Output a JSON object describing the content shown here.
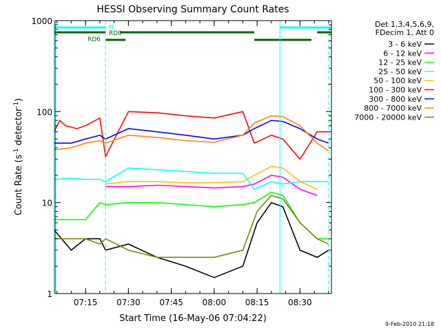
{
  "chart_data": {
    "type": "line",
    "title": "HESSI Observing Summary Count Rates",
    "xlabel": "Start Time (16-May-06 07:04:22)",
    "ylabel_parts": [
      "Count Rate (s",
      "-1",
      " detector",
      "-1",
      ")"
    ],
    "y_scale": "log",
    "ylim": [
      1,
      1000
    ],
    "xlim_minutes": [
      "07:04:22",
      "08:41:00"
    ],
    "y_ticks": [
      {
        "value": 1,
        "label": "1"
      },
      {
        "value": 10,
        "label": "10"
      },
      {
        "value": 100,
        "label": "100"
      },
      {
        "value": 1000,
        "label": "1000"
      }
    ],
    "x_ticks": [
      {
        "t": "07:15",
        "label": "07:15"
      },
      {
        "t": "07:30",
        "label": "07:30"
      },
      {
        "t": "07:45",
        "label": "07:45"
      },
      {
        "t": "08:00",
        "label": "08:00"
      },
      {
        "t": "08:15",
        "label": "08:15"
      },
      {
        "t": "08:30",
        "label": "08:30"
      }
    ],
    "x_tick_step_minutes": 5,
    "legend_header": [
      "Det 1,3,4,5,6,9,",
      "FDecim 1, Att 0"
    ],
    "legend_placement": "outside-right",
    "series": [
      {
        "name": "3 - 6 keV",
        "color": "#000000",
        "times": [
          "07:04",
          "07:10",
          "07:15",
          "07:20",
          "07:22",
          "07:30",
          "07:40",
          "07:50",
          "08:00",
          "08:10",
          "08:15",
          "08:20",
          "08:24",
          "08:30",
          "08:36",
          "08:40"
        ],
        "values": [
          5,
          3,
          4,
          4,
          3,
          3.5,
          2.5,
          2,
          1.5,
          2,
          6,
          10,
          9,
          3,
          2.5,
          3
        ]
      },
      {
        "name": "6 - 12 keV",
        "color": "#ff00ff",
        "times": [
          "07:22",
          "07:30",
          "07:40",
          "07:50",
          "08:00",
          "08:10",
          "08:14",
          "08:20",
          "08:24",
          "08:30",
          "08:36"
        ],
        "values": [
          15,
          15,
          15.5,
          15,
          14.5,
          15,
          16,
          20,
          19,
          14,
          12
        ]
      },
      {
        "name": "12 - 25 keV",
        "color": "#00ff00",
        "times": [
          "07:04",
          "07:10",
          "07:15",
          "07:20",
          "07:22",
          "07:30",
          "07:40",
          "07:50",
          "08:00",
          "08:10",
          "08:14",
          "08:20",
          "08:24",
          "08:30",
          "08:36",
          "08:40"
        ],
        "values": [
          6.5,
          6.5,
          6.5,
          10,
          9.5,
          10,
          10,
          9.5,
          9,
          9.5,
          10,
          13,
          12,
          6,
          4,
          4
        ]
      },
      {
        "name": "25 - 50 keV",
        "color": "#00ffff",
        "times": [
          "07:04",
          "07:10",
          "07:15",
          "07:20",
          "07:22",
          "07:30",
          "07:40",
          "07:50",
          "08:00",
          "08:10",
          "08:14",
          "08:20",
          "08:24",
          "08:30",
          "08:36",
          "08:40"
        ],
        "values": [
          18,
          18.5,
          18,
          18,
          17,
          24,
          23,
          22,
          21,
          21,
          14,
          17,
          16,
          17,
          17,
          17
        ]
      },
      {
        "name": "50 - 100 keV",
        "color": "#ffbf00",
        "times": [
          "07:22",
          "07:30",
          "07:40",
          "07:50",
          "08:00",
          "08:10",
          "08:14",
          "08:20",
          "08:24",
          "08:30",
          "08:36"
        ],
        "values": [
          16,
          17,
          17,
          16.5,
          16.5,
          17,
          20,
          25,
          24,
          17,
          14
        ]
      },
      {
        "name": "100 - 300 keV",
        "color": "#ff0000",
        "times": [
          "07:04",
          "07:06",
          "07:08",
          "07:12",
          "07:15",
          "07:20",
          "07:22",
          "07:30",
          "07:40",
          "07:50",
          "08:00",
          "08:10",
          "08:14",
          "08:20",
          "08:24",
          "08:30",
          "08:36",
          "08:40"
        ],
        "values": [
          60,
          80,
          70,
          65,
          70,
          85,
          32,
          100,
          97,
          90,
          85,
          100,
          45,
          55,
          50,
          30,
          60,
          60
        ]
      },
      {
        "name": "300 - 800 keV",
        "color": "#0000ff",
        "times": [
          "07:04",
          "07:10",
          "07:15",
          "07:20",
          "07:22",
          "07:30",
          "07:40",
          "07:50",
          "08:00",
          "08:10",
          "08:14",
          "08:20",
          "08:24",
          "08:30",
          "08:36",
          "08:40"
        ],
        "values": [
          45,
          45,
          50,
          55,
          50,
          65,
          60,
          55,
          50,
          55,
          65,
          80,
          78,
          65,
          50,
          45
        ]
      },
      {
        "name": "800 - 7000 keV",
        "color": "#ff8000",
        "times": [
          "07:04",
          "07:10",
          "07:15",
          "07:20",
          "07:22",
          "07:30",
          "07:40",
          "07:50",
          "08:00",
          "08:10",
          "08:14",
          "08:20",
          "08:24",
          "08:30",
          "08:36",
          "08:40"
        ],
        "values": [
          38,
          40,
          45,
          48,
          45,
          55,
          52,
          48,
          46,
          55,
          75,
          90,
          88,
          70,
          45,
          37
        ]
      },
      {
        "name": "7000 - 20000 keV",
        "color": "#808000",
        "times": [
          "07:04",
          "07:10",
          "07:15",
          "07:20",
          "07:22",
          "07:30",
          "07:40",
          "07:50",
          "08:00",
          "08:10",
          "08:15",
          "08:20",
          "08:24",
          "08:30",
          "08:36",
          "08:40"
        ],
        "values": [
          4,
          4,
          4,
          3.5,
          4,
          3,
          2.5,
          2.5,
          2.5,
          3,
          8,
          12,
          11,
          6,
          4,
          3.5
        ]
      }
    ],
    "state_bars": [
      {
        "label": "N",
        "color": "#00ffff",
        "segments": [
          [
            "07:04",
            "07:22"
          ],
          [
            "08:23",
            "08:41"
          ]
        ]
      },
      {
        "label": "RD0",
        "color": "#006400",
        "segments": [
          [
            "07:04",
            "07:22"
          ],
          [
            "07:27",
            "08:14"
          ],
          [
            "08:36",
            "08:41"
          ]
        ]
      },
      {
        "label": "RD6",
        "color": "#006400",
        "segments": [
          [
            "07:22",
            "07:29"
          ],
          [
            "08:14",
            "08:34"
          ]
        ]
      }
    ],
    "vertical_lines": [
      {
        "t": "07:04",
        "color": "#00ffff",
        "style": "solid"
      },
      {
        "t": "07:22",
        "color": "#00ffff",
        "style": "dashed"
      },
      {
        "t": "08:23",
        "color": "#00ffff",
        "style": "solid"
      },
      {
        "t": "08:40",
        "color": "#00ffff",
        "style": "dashed"
      }
    ]
  },
  "footer": {
    "date_stamp": "9-Feb-2010 21:18"
  }
}
